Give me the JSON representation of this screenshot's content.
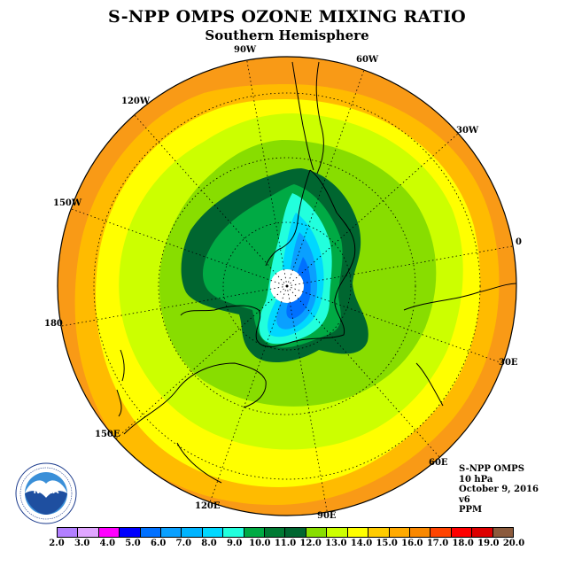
{
  "header": {
    "title": "S-NPP OMPS OZONE MIXING RATIO",
    "subtitle": "Southern Hemisphere"
  },
  "map": {
    "projection": "south-polar-stereographic",
    "longitude_labels": [
      "90W",
      "60W",
      "30W",
      "0",
      "30E",
      "60E",
      "90E",
      "120E",
      "150E",
      "180",
      "150W",
      "120W"
    ],
    "colors": {
      "ocean_outer": "#f99a16",
      "polar_hole": "#ffffff",
      "graticule": "#000000",
      "coastline": "#000000"
    }
  },
  "info": {
    "product": "S-NPP OMPS",
    "level": "10 hPa",
    "date": "October 9, 2016",
    "version": "v6",
    "units": "PPM"
  },
  "colorbar": {
    "tick_labels": [
      "2.0",
      "3.0",
      "4.0",
      "5.0",
      "6.0",
      "7.0",
      "8.0",
      "9.0",
      "10.0",
      "11.0",
      "12.0",
      "13.0",
      "14.0",
      "15.0",
      "16.0",
      "17.0",
      "18.0",
      "19.0",
      "20.0"
    ],
    "colors": [
      "#b27fff",
      "#e0a6ff",
      "#ff00ff",
      "#0000ff",
      "#0070ff",
      "#0aa0ff",
      "#00b4ff",
      "#00d8ff",
      "#22ffdd",
      "#00aa44",
      "#007a33",
      "#006630",
      "#88dd00",
      "#ccff00",
      "#ffff00",
      "#ffcc00",
      "#ffaa00",
      "#f98800",
      "#ff4400",
      "#ff0000",
      "#dd0000",
      "#8b5a3c"
    ]
  },
  "logo": {
    "name": "noaa-logo",
    "text": "NOAA",
    "ring_text": "NATIONAL OCEANIC AND ATMOSPHERIC ADMINISTRATION · U.S. DEPARTMENT OF COMMERCE"
  }
}
